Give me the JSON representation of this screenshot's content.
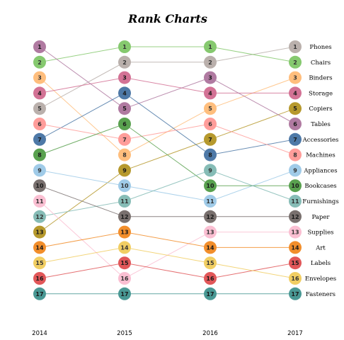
{
  "chart_data": {
    "type": "line",
    "subtype": "rank-bump",
    "title": "Rank Charts",
    "x": [
      "2014",
      "2015",
      "2016",
      "2017"
    ],
    "rank_range": [
      1,
      17
    ],
    "grid": false,
    "legend": "right labels",
    "series": [
      {
        "name": "Phones",
        "ranks": [
          5,
          2,
          2,
          1
        ],
        "color": "#bab0ac"
      },
      {
        "name": "Chairs",
        "ranks": [
          2,
          1,
          1,
          2
        ],
        "color": "#86c96f"
      },
      {
        "name": "Binders",
        "ranks": [
          3,
          8,
          5,
          3
        ],
        "color": "#ffbe7d"
      },
      {
        "name": "Storage",
        "ranks": [
          4,
          3,
          4,
          4
        ],
        "color": "#d37295"
      },
      {
        "name": "Copiers",
        "ranks": [
          13,
          9,
          7,
          5
        ],
        "color": "#b6992d"
      },
      {
        "name": "Tables",
        "ranks": [
          1,
          5,
          3,
          6
        ],
        "color": "#b07aa1"
      },
      {
        "name": "Accessories",
        "ranks": [
          7,
          4,
          8,
          7
        ],
        "color": "#4e79a7"
      },
      {
        "name": "Machines",
        "ranks": [
          6,
          7,
          6,
          8
        ],
        "color": "#ff9d9a"
      },
      {
        "name": "Appliances",
        "ranks": [
          9,
          10,
          11,
          9
        ],
        "color": "#a0cbe8"
      },
      {
        "name": "Bookcases",
        "ranks": [
          8,
          6,
          10,
          10
        ],
        "color": "#59a14f"
      },
      {
        "name": "Furnishings",
        "ranks": [
          12,
          11,
          9,
          11
        ],
        "color": "#86bcb6"
      },
      {
        "name": "Paper",
        "ranks": [
          10,
          12,
          12,
          12
        ],
        "color": "#79706e"
      },
      {
        "name": "Supplies",
        "ranks": [
          11,
          16,
          13,
          13
        ],
        "color": "#fabfd2"
      },
      {
        "name": "Art",
        "ranks": [
          14,
          13,
          14,
          14
        ],
        "color": "#f28e2b"
      },
      {
        "name": "Labels",
        "ranks": [
          16,
          15,
          16,
          15
        ],
        "color": "#e15759"
      },
      {
        "name": "Envelopes",
        "ranks": [
          15,
          14,
          15,
          16
        ],
        "color": "#f1ce63"
      },
      {
        "name": "Fasteners",
        "ranks": [
          17,
          17,
          17,
          17
        ],
        "color": "#499894"
      }
    ]
  }
}
